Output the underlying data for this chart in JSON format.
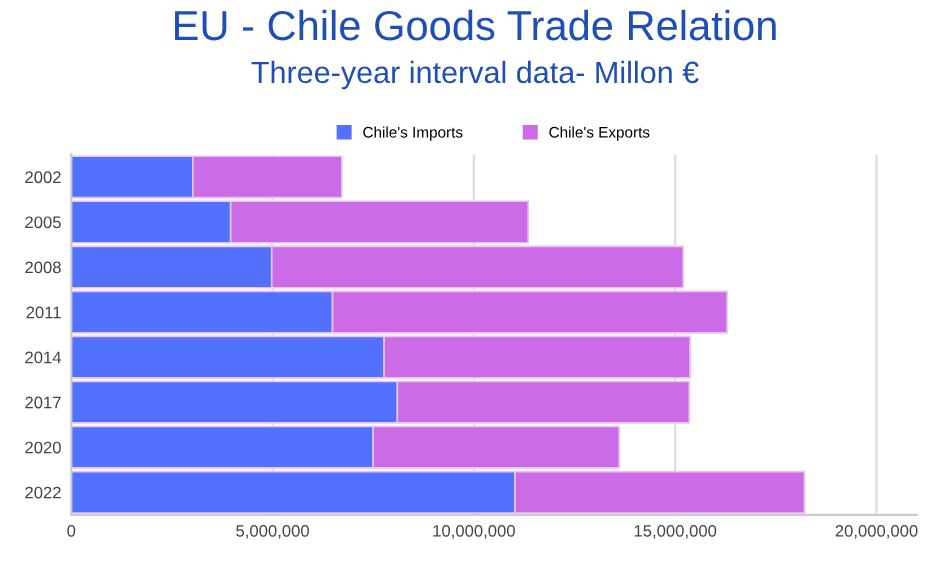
{
  "chart_data": {
    "type": "bar",
    "title": "EU - Chile Goods Trade Relation",
    "subtitle": "Three-year interval data- Millon €",
    "orientation": "horizontal",
    "stacked": true,
    "categories": [
      "2002",
      "2005",
      "2008",
      "2011",
      "2014",
      "2017",
      "2020",
      "2022"
    ],
    "series": [
      {
        "name": "Chile's Imports",
        "color": "#5271ff",
        "values": [
          3020000,
          3960000,
          4980000,
          6490000,
          7770000,
          8100000,
          7500000,
          11020000
        ]
      },
      {
        "name": "Chile's Exports",
        "color": "#cb6ce6",
        "values": [
          3700000,
          7390000,
          10220000,
          9800000,
          7600000,
          7250000,
          6110000,
          7190000
        ]
      }
    ],
    "xlim": [
      0,
      21000000
    ],
    "xticks": [
      {
        "value": 0,
        "label": "0"
      },
      {
        "value": 5000000,
        "label": "5,000,000"
      },
      {
        "value": 10000000,
        "label": "10,000,000"
      },
      {
        "value": 15000000,
        "label": "15,000,000"
      },
      {
        "value": 20000000,
        "label": "20,000,000"
      }
    ],
    "grid": "x",
    "legend": "top"
  }
}
